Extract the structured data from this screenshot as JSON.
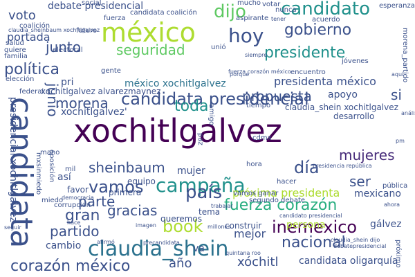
{
  "palette": {
    "dark_purple": "#440154",
    "indigo": "#472c7a",
    "blue": "#3b518b",
    "steel": "#2c728e",
    "teal": "#21918c",
    "green": "#28ae80",
    "lime": "#5ec962",
    "yellow_green": "#addc30",
    "yellow": "#fde725"
  },
  "words": {
    "xochitlgalvez": "xochitlgalvez",
    "candidata": "candidata",
    "mexico": "méxico",
    "campana": "campaña",
    "claudia_shein": "claudia_shein",
    "candidata_presidencial": "candidata presidencial",
    "fuerza_corazon": "fuerza corazón",
    "hoy": "hoy",
    "dijo": "dijo",
    "candidato": "candidato",
    "gobierno": "gobierno",
    "presidente": "presidente",
    "seguridad": "seguridad",
    "politica": "política",
    "junto": "junto",
    "voto": "voto",
    "portada": "portada",
    "debate_presidencial": "debate presidencial",
    "candidata_coalicion": "candidata coalición",
    "mexico_xochitlgalvez": "méxico xochitlgalvez",
    "presidenta_mexico": "presidenta méxico",
    "propuesta": "propuesta",
    "si": "si",
    "apoyo": "apoyo",
    "morena": "morena",
    "toda": "toda",
    "junio": "junio",
    "claudia_shein_xochitlgalvez": "claudia_shein xochitlgalvez",
    "desarrollo": "desarrollo",
    "sheinbaum": "sheinbaum",
    "mujer": "mujer",
    "mujeres": "mujeres",
    "dia": "día",
    "vamos": "vamos",
    "pais": "país",
    "ser": "ser",
    "parte": "parte",
    "proxima_presidenta": "próxima presidenta",
    "gran": "gran",
    "gracias": "gracias",
    "mexicano": "mexicano",
    "partido": "partido",
    "book": "book",
    "inemexico": "inemexico",
    "nacional": "nacional",
    "corazon_mexico": "corazón méxico",
    "ano": "año",
    "cambio": "cambio",
    "mejor": "mejor",
    "persona": "persona",
    "galvez": "gálvez",
    "xochitl": "xóchitl",
    "candidata_oligarquia": "candidata oligarquía",
    "equipo": "equipo",
    "primera": "primera",
    "queremos": "queremos",
    "construir": "construir",
    "tema": "tema",
    "segundo_debate": "segundo debate",
    "vamos_ganar": "vamos ganar",
    "favor": "favor",
    "asi": "así",
    "pri": "pri",
    "xochitlgalvez_quote": "xochitlgalvez'",
    "xochitlgalvez_alvarezmaynez": "xochitlgalvez alvarezmaynez",
    "presidencial_xochitlgalvez": "presidencial xochitlgalvez",
    "social": "social",
    "futuro": "futuro",
    "electoral": "electoral",
    "fuerza": "fuerza",
    "aspirante": "aspirante",
    "unio": "unió",
    "acuerdo": "acuerdo",
    "jovenes": "jóvenes",
    "votar": "votar",
    "esperanza": "esperanza",
    "nunca": "nunca",
    "mucho": "mucho",
    "gente": "gente",
    "encuentro": "encuentro",
    "eleccion": "elección",
    "federal": "federal",
    "salud": "salud",
    "familia": "familia",
    "quiere": "quiere",
    "coalicion": "coalición",
    "claudia_sheinbaum_xochitlgalvez": "claudia_sheinbaum xochitlgalvez",
    "porque": "porque",
    "mil": "mil",
    "mano": "mano",
    "mxsinmiedo": "mxsinmiedo",
    "oposicion": "oposición",
    "democracia": "democracia",
    "corrupcion": "corrupción",
    "miedo": "miedo",
    "hora": "hora",
    "hacer": "hacer",
    "cdmx": "cdmx",
    "paz": "paz",
    "tiempo": "tiempo",
    "amigo": "amigo",
    "publica": "pública",
    "presidencia_republica": "presidencia república",
    "proximo": "próximo",
    "millones": "millones",
    "afirmo": "afirmó",
    "seguir": "seguir",
    "hace": "hace",
    "imagen": "imagen",
    "precandidata": "precandidata",
    "claudia_shein_dijo": "claudia_shein dijo",
    "debatepresidencial": "debatepresidencial",
    "va": "va",
    "candidato_presidencial": "candidato presidencial",
    "siempre": "siempre",
    "tener": "tener",
    "ahora": "ahora",
    "aqui": "aquí",
    "analisis": "análisis",
    "trabajar": "trabajar",
    "morena_partido": "morena_partido",
    "fuerza_corazon_mexico": "fuerza corazón méxico",
    "quintana_roo": "quintana roo",
    "pm": "pm"
  }
}
